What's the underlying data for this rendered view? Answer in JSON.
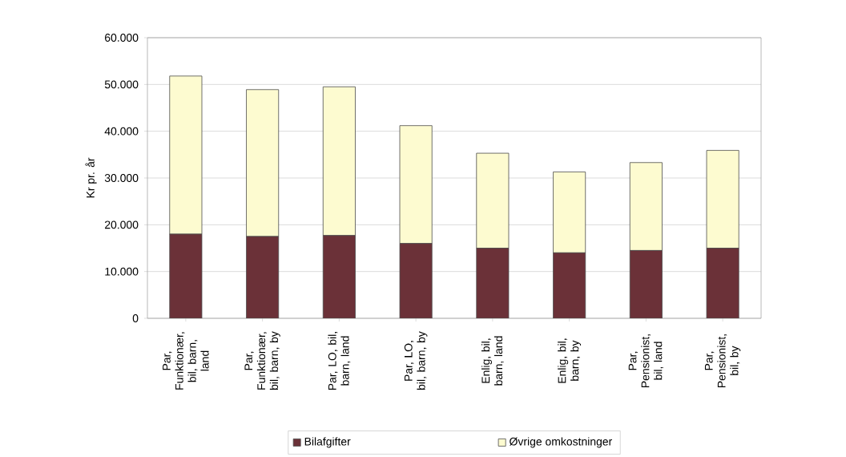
{
  "chart_data": {
    "type": "bar",
    "stacked": true,
    "ylabel": "Kr pr. år",
    "categories": [
      "Par, Funktionær, bil, barn, land",
      "Par, Funktionær, bil, barn, by",
      "Par, LO, bil, barn, land",
      "Par, LO, bil, barn, by",
      "Enlig, bil, barn, land",
      "Enlig, bil, barn, by",
      "Par, Pensionist, bil, land",
      "Par, Pensionist, bil, by"
    ],
    "series": [
      {
        "name": "Bilafgifter",
        "color": "#6b3138",
        "values": [
          18000,
          17500,
          17700,
          16000,
          15000,
          14000,
          14500,
          15000
        ]
      },
      {
        "name": "Øvrige omkostninger",
        "color": "#fdfbd0",
        "values": [
          33800,
          31400,
          31800,
          25200,
          20300,
          17300,
          18800,
          20900
        ]
      }
    ],
    "ylim": [
      0,
      60000
    ],
    "yticks": [
      {
        "value": 0,
        "label": "0"
      },
      {
        "value": 10000,
        "label": "10.000"
      },
      {
        "value": 20000,
        "label": "20.000"
      },
      {
        "value": 30000,
        "label": "30.000"
      },
      {
        "value": 40000,
        "label": "40.000"
      },
      {
        "value": 50000,
        "label": "50.000"
      },
      {
        "value": 60000,
        "label": "60.000"
      }
    ],
    "grid": "y",
    "legend": "bottom"
  }
}
